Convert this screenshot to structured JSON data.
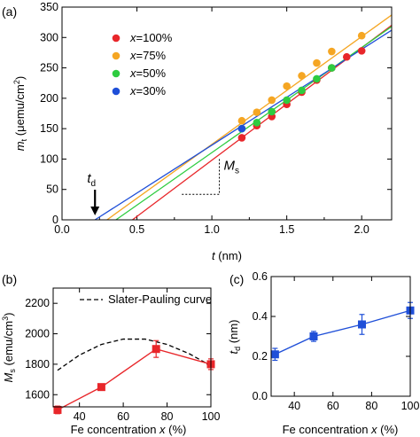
{
  "chart_data": [
    {
      "id": "a",
      "panel_label": "(a)",
      "type": "scatter",
      "xlabel_main": "t",
      "xlabel_unit": " (nm)",
      "ylabel_main": "m",
      "ylabel_sub": "t",
      "ylabel_unit": " (μemu/cm",
      "ylabel_sup": "2",
      "ylabel_close": ")",
      "xlim": [
        0,
        2.2
      ],
      "ylim": [
        0,
        350
      ],
      "xticks": [
        0.0,
        0.5,
        1.0,
        1.5,
        2.0
      ],
      "xtick_labels": [
        "0.0",
        "0.5",
        "1.0",
        "1.5",
        "2.0"
      ],
      "yticks": [
        0,
        50,
        100,
        150,
        200,
        250,
        300,
        350
      ],
      "ytick_labels": [
        "0",
        "50",
        "100",
        "150",
        "200",
        "250",
        "300",
        "350"
      ],
      "legend_position": "top-left",
      "series": [
        {
          "name_var": "x",
          "name_val": "=100%",
          "color": "#e8262a",
          "x": [
            1.2,
            1.3,
            1.4,
            1.5,
            1.6,
            1.7,
            1.8,
            1.9,
            2.0
          ],
          "y": [
            135,
            155,
            170,
            190,
            210,
            230,
            250,
            268,
            278
          ],
          "fit": {
            "x": [
              0.47,
              2.2
            ],
            "y": [
              0,
              320
            ]
          }
        },
        {
          "name_var": "x",
          "name_val": "=75%",
          "color": "#f5a623",
          "x": [
            1.2,
            1.3,
            1.4,
            1.5,
            1.6,
            1.7,
            1.8,
            2.0
          ],
          "y": [
            163,
            177,
            197,
            220,
            237,
            258,
            277,
            303
          ],
          "fit": {
            "x": [
              0.3,
              2.2
            ],
            "y": [
              0,
              337
            ]
          }
        },
        {
          "name_var": "x",
          "name_val": "=50%",
          "color": "#2ecc40",
          "x": [
            1.2,
            1.3,
            1.4,
            1.5,
            1.6,
            1.7,
            1.8
          ],
          "y": [
            150,
            160,
            178,
            197,
            213,
            232,
            250
          ],
          "fit": {
            "x": [
              0.36,
              2.2
            ],
            "y": [
              0,
              318
            ]
          }
        },
        {
          "name_var": "x",
          "name_val": "=30%",
          "color": "#1f4fd8",
          "x": [
            1.2
          ],
          "y": [
            150
          ],
          "fit": {
            "x": [
              0.22,
              2.2
            ],
            "y": [
              0,
              312
            ]
          }
        }
      ],
      "annotations": {
        "td_main": "t",
        "td_sub": "d",
        "td_arrow_x": 0.22,
        "ms_main": "M",
        "ms_sub": "s",
        "slope_triangle": {
          "x1": 0.8,
          "x2": 1.05,
          "y1": 42,
          "y2": 100
        }
      }
    },
    {
      "id": "b",
      "panel_label": "(b)",
      "type": "line",
      "xlabel": "Fe concentration ",
      "xlabel_var": "x",
      "xlabel_unit": " (%)",
      "ylabel_main": "M",
      "ylabel_sub": "s",
      "ylabel_unit": " (emu/cm",
      "ylabel_sup": "3",
      "ylabel_close": ")",
      "xlim": [
        28,
        100
      ],
      "ylim": [
        1520,
        2300
      ],
      "xticks": [
        40,
        60,
        80,
        100
      ],
      "xtick_labels": [
        "40",
        "60",
        "80",
        "100"
      ],
      "yticks": [
        1600,
        1800,
        2000,
        2200
      ],
      "ytick_labels": [
        "1600",
        "1800",
        "2000",
        "2200"
      ],
      "series": [
        {
          "color": "#e8262a",
          "marker": "square",
          "x": [
            30,
            50,
            75,
            100
          ],
          "y": [
            1500,
            1650,
            1900,
            1800
          ],
          "err": [
            25,
            15,
            55,
            35
          ]
        }
      ],
      "reference_curve": {
        "name": "Slater-Pauling curve",
        "x": [
          30,
          40,
          50,
          60,
          70,
          80,
          90,
          100
        ],
        "y": [
          1760,
          1860,
          1930,
          1965,
          1965,
          1930,
          1870,
          1790
        ]
      }
    },
    {
      "id": "c",
      "panel_label": "(c)",
      "type": "line",
      "xlabel": "Fe concentration ",
      "xlabel_var": "x",
      "xlabel_unit": " (%)",
      "ylabel_main": "t",
      "ylabel_sub": "d",
      "ylabel_unit": " (nm)",
      "xlim": [
        28,
        100
      ],
      "ylim": [
        0,
        0.6
      ],
      "xticks": [
        40,
        60,
        80,
        100
      ],
      "xtick_labels": [
        "40",
        "60",
        "80",
        "100"
      ],
      "yticks": [
        0.0,
        0.2,
        0.4,
        0.6
      ],
      "ytick_labels": [
        "0.0",
        "0.2",
        "0.4",
        "0.6"
      ],
      "series": [
        {
          "color": "#1f4fd8",
          "marker": "square",
          "x": [
            30,
            50,
            75,
            100
          ],
          "y": [
            0.21,
            0.3,
            0.36,
            0.43
          ],
          "err": [
            0.03,
            0.025,
            0.05,
            0.04
          ]
        }
      ]
    }
  ]
}
